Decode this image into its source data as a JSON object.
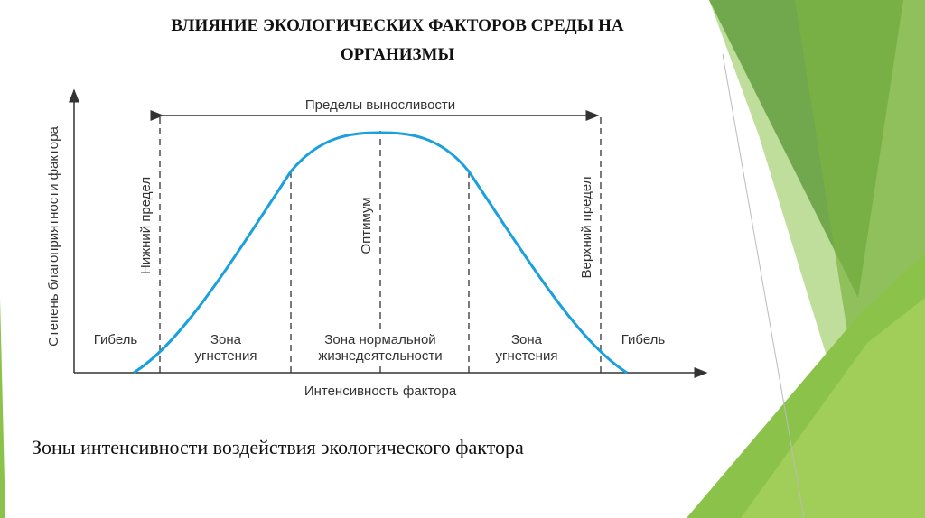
{
  "slide": {
    "title": [
      "ВЛИЯНИЕ ЭКОЛОГИЧЕСКИХ ФАКТОРОВ СРЕДЫ НА",
      "ОРГАНИЗМЫ"
    ],
    "caption": "Зоны интенсивности воздействия экологического фактора"
  },
  "diagram": {
    "y_axis_label": "Степень благоприятности фактора",
    "x_axis_label": "Интенсивность фактора",
    "range_label": "Пределы выносливости",
    "limits": [
      "Нижний предел",
      "Оптимум",
      "Верхний предел"
    ],
    "zones": [
      [
        "Гибель"
      ],
      [
        "Зона",
        "угнетения"
      ],
      [
        "Зона нормальной",
        "жизнедеятельности"
      ],
      [
        "Зона",
        "угнетения"
      ],
      [
        "Гибель"
      ]
    ]
  }
}
